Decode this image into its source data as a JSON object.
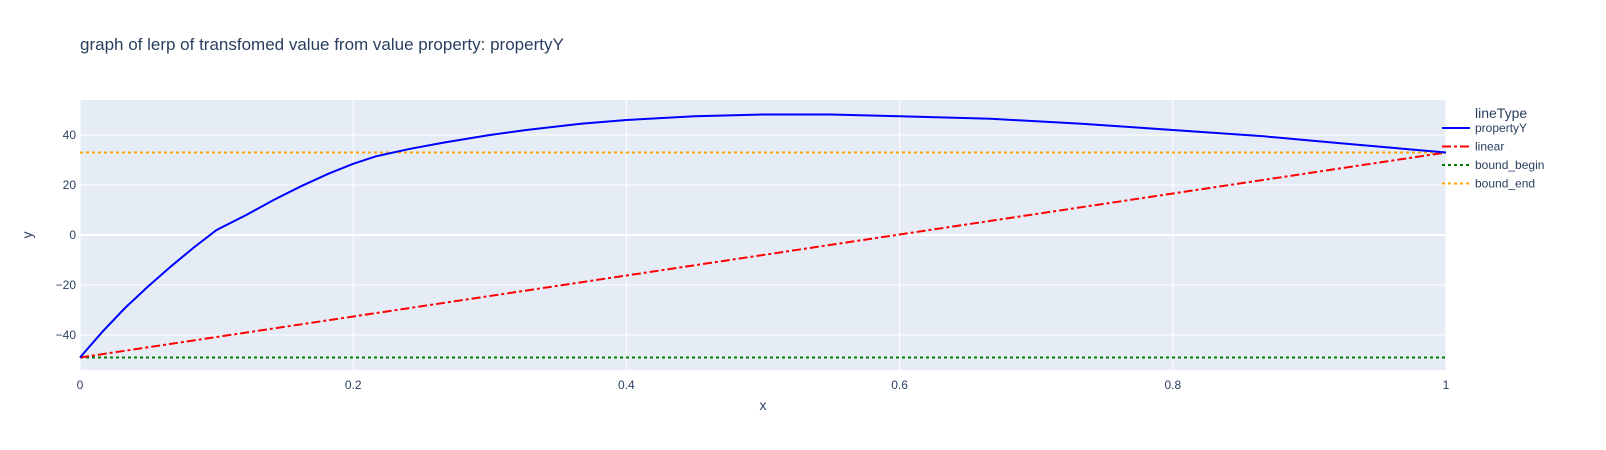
{
  "chart_data": {
    "type": "line",
    "title": "graph of lerp of transfomed value from value property:  propertyY",
    "xlabel": "x",
    "ylabel": "y",
    "xlim": [
      0,
      1
    ],
    "ylim": [
      -54,
      54
    ],
    "x_ticks": [
      0,
      0.2,
      0.4,
      0.6,
      0.8,
      1
    ],
    "x_tick_labels": [
      "0",
      "0.2",
      "0.4",
      "0.6",
      "0.8",
      "1"
    ],
    "y_ticks": [
      -40,
      -20,
      0,
      20,
      40
    ],
    "y_tick_labels": [
      "−40",
      "−20",
      "0",
      "20",
      "40"
    ],
    "grid": true,
    "legend": {
      "title": "lineType",
      "placement": "right"
    },
    "series": [
      {
        "name": "propertyY",
        "color": "#0000ff",
        "dash": "solid",
        "x": [
          0,
          0.0167,
          0.0333,
          0.05,
          0.0667,
          0.0833,
          0.1,
          0.1217,
          0.1417,
          0.1617,
          0.1817,
          0.2,
          0.2167,
          0.2417,
          0.2667,
          0.3,
          0.3267,
          0.3667,
          0.4,
          0.45,
          0.5,
          0.55,
          0.6,
          0.6667,
          0.7333,
          0.8,
          0.8667,
          0.9167,
          0.9583,
          1
        ],
        "y": [
          -49,
          -38.5,
          -29,
          -20.5,
          -12.5,
          -5,
          2,
          8,
          14,
          19.5,
          24.5,
          28.5,
          31.5,
          34.5,
          37,
          40,
          42,
          44.5,
          46,
          47.5,
          48.2,
          48.2,
          47.5,
          46.5,
          44.5,
          42,
          39.5,
          37,
          35,
          33
        ]
      },
      {
        "name": "linear",
        "color": "#ff0000",
        "dash": "dashdot",
        "x": [
          0,
          1
        ],
        "y": [
          -49,
          33
        ]
      },
      {
        "name": "bound_begin",
        "color": "#008000",
        "dash": "dot",
        "x": [
          0,
          1
        ],
        "y": [
          -49,
          -49
        ]
      },
      {
        "name": "bound_end",
        "color": "#ffa500",
        "dash": "dot",
        "x": [
          0,
          1
        ],
        "y": [
          33,
          33
        ]
      }
    ]
  }
}
